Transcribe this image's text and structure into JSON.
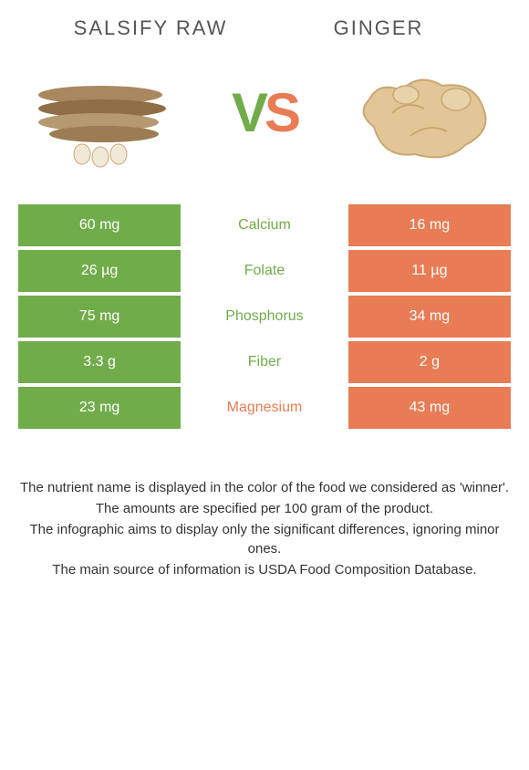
{
  "colors": {
    "green": "#71ac4b",
    "orange": "#e87c55",
    "white": "#ffffff",
    "text": "#333333"
  },
  "foods": {
    "left": {
      "title": "Salsify raw"
    },
    "right": {
      "title": "Ginger"
    }
  },
  "vs": {
    "v": "V",
    "s": "S"
  },
  "rows": [
    {
      "nutrient": "Calcium",
      "left": "60 mg",
      "right": "16 mg",
      "winner": "left"
    },
    {
      "nutrient": "Folate",
      "left": "26 µg",
      "right": "11 µg",
      "winner": "left"
    },
    {
      "nutrient": "Phosphorus",
      "left": "75 mg",
      "right": "34 mg",
      "winner": "left"
    },
    {
      "nutrient": "Fiber",
      "left": "3.3 g",
      "right": "2 g",
      "winner": "left"
    },
    {
      "nutrient": "Magnesium",
      "left": "23 mg",
      "right": "43 mg",
      "winner": "right"
    }
  ],
  "footnotes": [
    "The nutrient name is displayed in the color of the food we considered as 'winner'.",
    "The amounts are specified per 100 gram of the product.",
    "The infographic aims to display only the significant differences, ignoring minor ones.",
    "The main source of information is USDA Food Composition Database."
  ]
}
